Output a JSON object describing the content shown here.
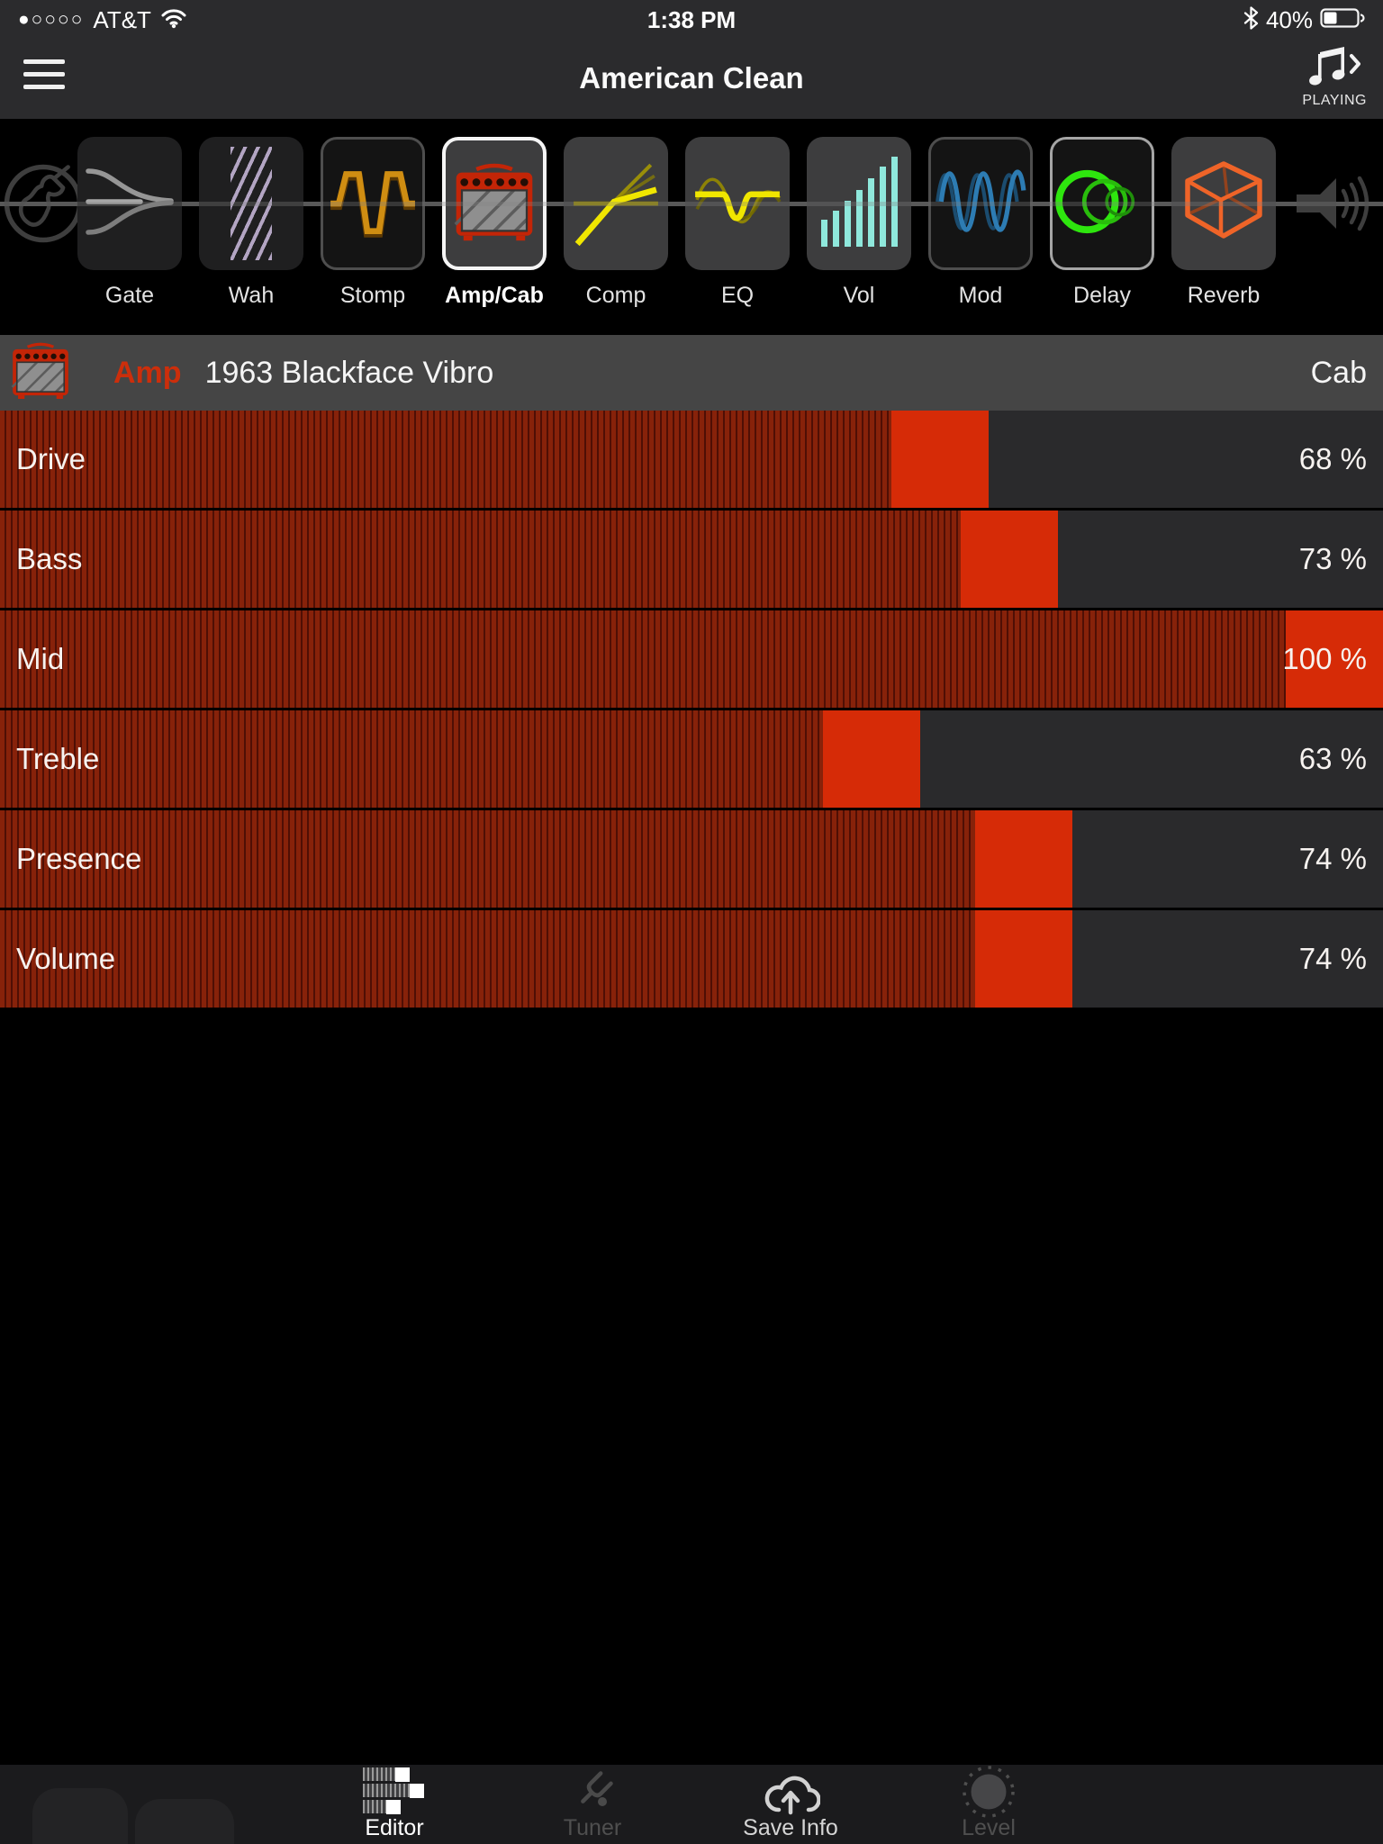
{
  "status_bar": {
    "signal_dots": "●○○○○",
    "carrier": "AT&T",
    "time": "1:38 PM",
    "battery_percent_label": "40%",
    "battery_fill_percent": 40
  },
  "header": {
    "title": "American Clean",
    "now_playing_label": "PLAYING"
  },
  "signal_chain": {
    "items": [
      {
        "id": "gate",
        "label": "Gate",
        "state": "bypassed"
      },
      {
        "id": "wah",
        "label": "Wah",
        "state": "bypassed"
      },
      {
        "id": "stomp",
        "label": "Stomp",
        "state": "bypassed-outlined"
      },
      {
        "id": "ampcab",
        "label": "Amp/Cab",
        "state": "selected"
      },
      {
        "id": "comp",
        "label": "Comp",
        "state": "active"
      },
      {
        "id": "eq",
        "label": "EQ",
        "state": "active"
      },
      {
        "id": "vol",
        "label": "Vol",
        "state": "active"
      },
      {
        "id": "mod",
        "label": "Mod",
        "state": "bypassed-outlined"
      },
      {
        "id": "delay",
        "label": "Delay",
        "state": "outlined-light"
      },
      {
        "id": "reverb",
        "label": "Reverb",
        "state": "active"
      }
    ]
  },
  "amp_section": {
    "type_label": "Amp",
    "model_name": "1963 Blackface Vibro",
    "cab_label": "Cab"
  },
  "sliders": [
    {
      "label": "Drive",
      "value": 68,
      "display": "68 %"
    },
    {
      "label": "Bass",
      "value": 73,
      "display": "73 %"
    },
    {
      "label": "Mid",
      "value": 100,
      "display": "100 %"
    },
    {
      "label": "Treble",
      "value": 63,
      "display": "63 %"
    },
    {
      "label": "Presence",
      "value": 74,
      "display": "74 %"
    },
    {
      "label": "Volume",
      "value": 74,
      "display": "74 %"
    }
  ],
  "tab_bar": {
    "items": [
      {
        "label": "Editor",
        "state": "selected"
      },
      {
        "label": "Tuner",
        "state": "disabled"
      },
      {
        "label": "Save Info",
        "state": "enabled"
      },
      {
        "label": "Level",
        "state": "disabled"
      }
    ]
  },
  "colors": {
    "accent_red": "#d62b07",
    "slider_stripe_red": "#87220a",
    "slider_track": "#2a2a2c",
    "amp_bar_bg": "#454545",
    "amp_label_red": "#cc2e0b",
    "delay_green": "#2ee60e",
    "reverb_orange": "#ef6428",
    "mod_blue": "#2d7cb3",
    "vol_teal": "#8fe8dc",
    "comp_yellow": "#f0e600",
    "stomp_orange": "#cf8d12",
    "wah_lavender": "#b3a5c3"
  }
}
